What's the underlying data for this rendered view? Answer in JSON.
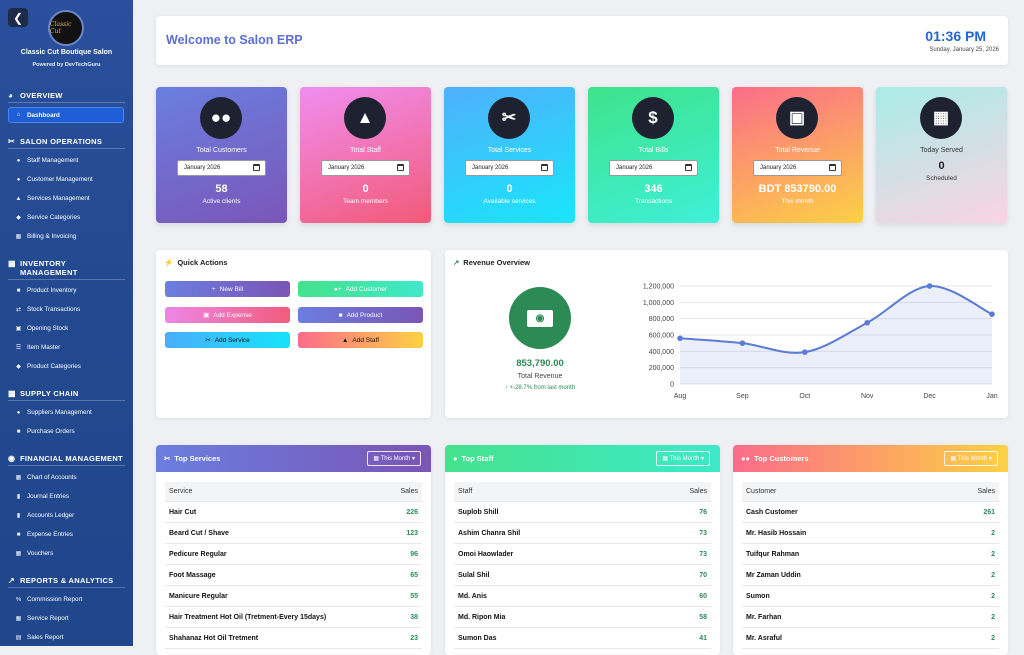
{
  "sidebar": {
    "brand_name": "Classic Cut Boutique Salon",
    "brand_sub": "Powered by DevTechGuru",
    "logo_text": "Classic Cut",
    "sections": [
      {
        "title": "OVERVIEW",
        "items": [
          "Dashboard"
        ]
      },
      {
        "title": "SALON OPERATIONS",
        "items": [
          "Staff Management",
          "Customer Management",
          "Services Management",
          "Service Categories",
          "Billing & Invoicing"
        ]
      },
      {
        "title": "INVENTORY MANAGEMENT",
        "items": [
          "Product Inventory",
          "Stock Transactions",
          "Opening Stock",
          "Item Master",
          "Product Categories"
        ]
      },
      {
        "title": "SUPPLY CHAIN",
        "items": [
          "Suppliers Management",
          "Purchase Orders"
        ]
      },
      {
        "title": "FINANCIAL MANAGEMENT",
        "items": [
          "Chart of Accounts",
          "Journal Entries",
          "Accounts Ledger",
          "Expense Entries",
          "Vouchers"
        ]
      },
      {
        "title": "REPORTS & ANALYTICS",
        "items": [
          "Commission Report",
          "Service Report",
          "Sales Report"
        ]
      }
    ]
  },
  "header": {
    "title": "Welcome to Salon ERP",
    "time": "01:36 PM",
    "date": "Sunday, January 25, 2026"
  },
  "cards": [
    {
      "label": "Total Customers",
      "month": "January 2026",
      "value": "58",
      "sub": "Active clients",
      "icon": "users-icon"
    },
    {
      "label": "Total Staff",
      "month": "January 2026",
      "value": "0",
      "sub": "Team members",
      "icon": "user-tie-icon"
    },
    {
      "label": "Total Services",
      "month": "January 2026",
      "value": "0",
      "sub": "Available services",
      "icon": "scissors-icon"
    },
    {
      "label": "Total Bills",
      "month": "January 2026",
      "value": "346",
      "sub": "Transactions",
      "icon": "invoice-icon"
    },
    {
      "label": "Total Revenue",
      "month": "January 2026",
      "value": "BDT 853790.00",
      "sub": "This month",
      "icon": "money-icon"
    },
    {
      "label": "Today Served",
      "value": "0",
      "sub": "Scheduled",
      "icon": "calendar-icon"
    }
  ],
  "quick_actions": {
    "title": "Quick Actions",
    "buttons": [
      "New Bill",
      "Add Customer",
      "Add Expense",
      "Add Product",
      "Add Service",
      "Add Staff"
    ]
  },
  "revenue": {
    "title": "Revenue Overview",
    "value": "853,790.00",
    "label": "Total Revenue",
    "change": "+-28.7% from last month"
  },
  "chart_data": {
    "type": "line",
    "categories": [
      "Aug",
      "Sep",
      "Oct",
      "Nov",
      "Dec",
      "Jan"
    ],
    "values": [
      560000,
      500000,
      390000,
      750000,
      1200000,
      855000
    ],
    "ylim": [
      0,
      1200000
    ],
    "yticks": [
      "0",
      "200,000",
      "400,000",
      "600,000",
      "800,000",
      "1,000,000",
      "1,200,000"
    ],
    "grid": true,
    "fill": true,
    "color": "#5b7bd5"
  },
  "top_services": {
    "title": "Top Services",
    "filter": "This Month",
    "col1": "Service",
    "col2": "Sales",
    "rows": [
      [
        "Hair Cut",
        "226"
      ],
      [
        "Beard Cut / Shave",
        "123"
      ],
      [
        "Pedicure Regular",
        "96"
      ],
      [
        "Foot Massage",
        "65"
      ],
      [
        "Manicure Regular",
        "55"
      ],
      [
        "Hair Treatment Hot Oil (Tretment-Every 15days)",
        "38"
      ],
      [
        "Shahanaz Hot Oil Tretment",
        "23"
      ]
    ]
  },
  "top_staff": {
    "title": "Top Staff",
    "filter": "This Month",
    "col1": "Staff",
    "col2": "Sales",
    "rows": [
      [
        "Suplob Shill",
        "76"
      ],
      [
        "Ashim Chanra Shil",
        "73"
      ],
      [
        "Omoi Haowlader",
        "73"
      ],
      [
        "Sulal Shil",
        "70"
      ],
      [
        "Md. Anis",
        "60"
      ],
      [
        "Md. Ripon Mia",
        "58"
      ],
      [
        "Sumon Das",
        "41"
      ]
    ]
  },
  "top_customers": {
    "title": "Top Customers",
    "filter": "This Month",
    "col1": "Customer",
    "col2": "Sales",
    "rows": [
      [
        "Cash Customer",
        "261"
      ],
      [
        "Mr. Hasib Hossain",
        "2"
      ],
      [
        "Tuifqur Rahman",
        "2"
      ],
      [
        "Mr Zaman Uddin",
        "2"
      ],
      [
        "Sumon",
        "2"
      ],
      [
        "Mr. Farhan",
        "2"
      ],
      [
        "Mr. Asraful",
        "2"
      ]
    ]
  }
}
